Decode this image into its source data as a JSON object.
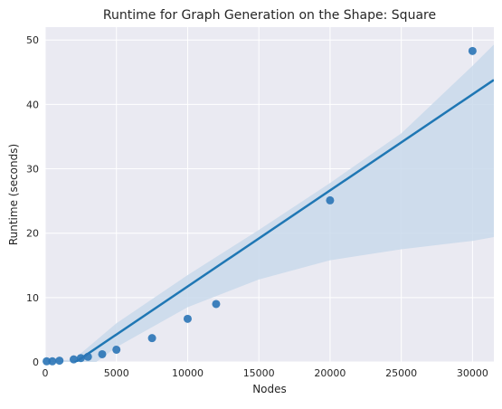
{
  "chart_data": {
    "type": "scatter",
    "title": "Runtime for Graph Generation on the Shape: Square",
    "xlabel": "Nodes",
    "ylabel": "Runtime (seconds)",
    "xlim": [
      0,
      31500
    ],
    "ylim": [
      0,
      52
    ],
    "x_ticks": [
      0,
      5000,
      10000,
      15000,
      20000,
      25000,
      30000
    ],
    "y_ticks": [
      0,
      10,
      20,
      30,
      40,
      50
    ],
    "x_tick_labels": [
      "0",
      "5000",
      "10000",
      "15000",
      "20000",
      "25000",
      "30000"
    ],
    "y_tick_labels": [
      "0",
      "10",
      "20",
      "30",
      "40",
      "50"
    ],
    "grid": true,
    "points": [
      {
        "x": 100,
        "y": 0.1
      },
      {
        "x": 500,
        "y": 0.1
      },
      {
        "x": 1000,
        "y": 0.2
      },
      {
        "x": 2000,
        "y": 0.4
      },
      {
        "x": 2500,
        "y": 0.6
      },
      {
        "x": 3000,
        "y": 0.8
      },
      {
        "x": 4000,
        "y": 1.2
      },
      {
        "x": 5000,
        "y": 1.9
      },
      {
        "x": 7500,
        "y": 3.7
      },
      {
        "x": 10000,
        "y": 6.7
      },
      {
        "x": 12000,
        "y": 9.0
      },
      {
        "x": 20000,
        "y": 25.1
      },
      {
        "x": 30000,
        "y": 48.3
      }
    ],
    "regression_line": {
      "x": [
        0,
        31500
      ],
      "y": [
        -3.2,
        43.8
      ]
    },
    "confidence_band": {
      "x": [
        0,
        2000,
        5000,
        10000,
        15000,
        20000,
        25000,
        30000,
        31500
      ],
      "upper": [
        0,
        0.4,
        6.0,
        13.5,
        20.5,
        27.8,
        35.5,
        46.0,
        49.3
      ],
      "lower": [
        -5.2,
        -2.6,
        2.3,
        8.5,
        12.8,
        15.8,
        17.5,
        18.8,
        19.4
      ]
    },
    "colors": {
      "points": "#2a74b6",
      "line": "#1f77b4",
      "band": "#c9d9eb",
      "plot_background": "#eaeaf2",
      "grid": "#ffffff"
    }
  }
}
